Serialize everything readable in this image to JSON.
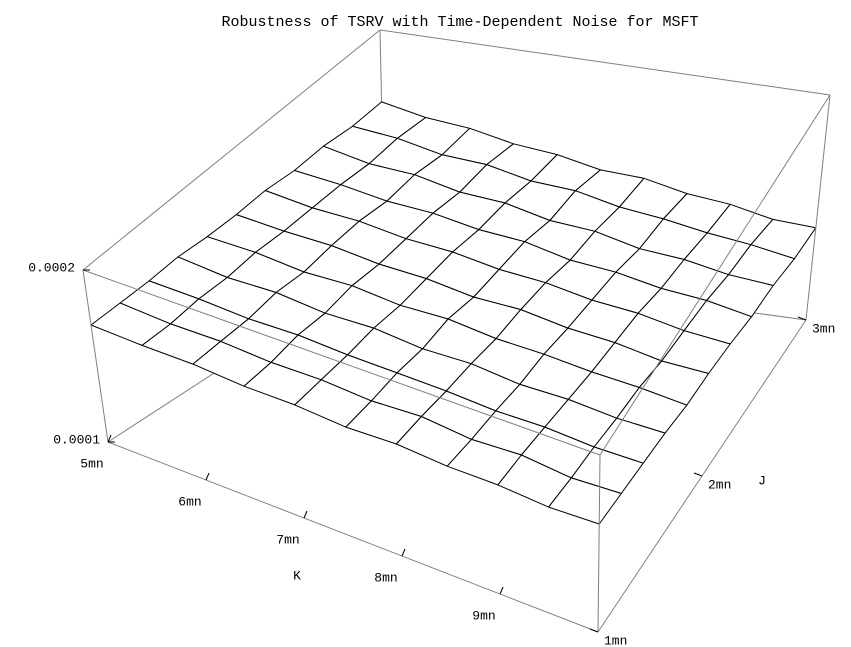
{
  "chart_data": {
    "type": "surface",
    "title": "Robustness of TSRV with Time-Dependent Noise for MSFT",
    "xlabel": "K",
    "ylabel": "J",
    "x": [
      5,
      5.5,
      6,
      6.5,
      7,
      7.5,
      8,
      8.5,
      9,
      9.5,
      10
    ],
    "y": [
      1,
      1.2,
      1.4,
      1.6,
      1.8,
      2,
      2.2,
      2.4,
      2.6,
      2.8,
      3
    ],
    "z": [
      [
        0.000168,
        0.000167,
        0.000167,
        0.000165,
        0.000165,
        0.000163,
        0.000164,
        0.000162,
        0.000162,
        0.00016,
        0.000161
      ],
      [
        0.000168,
        0.000166,
        0.000166,
        0.000164,
        0.000164,
        0.000162,
        0.000163,
        0.00016,
        0.000161,
        0.000158,
        0.000159
      ],
      [
        0.000168,
        0.000167,
        0.000165,
        0.000165,
        0.000163,
        0.000162,
        0.000161,
        0.000159,
        0.000159,
        0.000157,
        0.000157
      ],
      [
        0.000169,
        0.000166,
        0.000166,
        0.000163,
        0.000163,
        0.00016,
        0.00016,
        0.000157,
        0.000157,
        0.000155,
        0.000155
      ],
      [
        0.000168,
        0.000167,
        0.000164,
        0.000164,
        0.000161,
        0.000161,
        0.000158,
        0.000157,
        0.000155,
        0.000154,
        0.000152
      ],
      [
        0.000168,
        0.000166,
        0.000165,
        0.000162,
        0.000161,
        0.000158,
        0.000158,
        0.000155,
        0.000154,
        0.000151,
        0.000151
      ],
      [
        0.000169,
        0.000166,
        0.000165,
        0.000162,
        0.000161,
        0.000158,
        0.000157,
        0.000154,
        0.000153,
        0.00015,
        0.000149
      ],
      [
        0.000168,
        0.000166,
        0.000163,
        0.000162,
        0.000159,
        0.000158,
        0.000154,
        0.000153,
        0.00015,
        0.000149,
        0.000146
      ],
      [
        0.000169,
        0.000165,
        0.000164,
        0.00016,
        0.000159,
        0.000155,
        0.000154,
        0.00015,
        0.000149,
        0.000146,
        0.000145
      ],
      [
        0.000168,
        0.000166,
        0.000162,
        0.000161,
        0.000157,
        0.000156,
        0.000152,
        0.00015,
        0.000147,
        0.000145,
        0.000142
      ],
      [
        0.000169,
        0.000165,
        0.000163,
        0.000159,
        0.000157,
        0.000153,
        0.000152,
        0.000148,
        0.000146,
        0.000142,
        0.000141
      ]
    ],
    "xlim": [
      5,
      10
    ],
    "ylim": [
      1,
      3
    ],
    "zlim": [
      0.0001,
      0.0002
    ],
    "xticks": [
      {
        "value": 5,
        "label": "5mn"
      },
      {
        "value": 6,
        "label": "6mn"
      },
      {
        "value": 7,
        "label": "7mn"
      },
      {
        "value": 8,
        "label": "8mn"
      },
      {
        "value": 9,
        "label": "9mn"
      }
    ],
    "yticks": [
      {
        "value": 1,
        "label": "1mn"
      },
      {
        "value": 2,
        "label": "2mn"
      },
      {
        "value": 3,
        "label": "3mn"
      }
    ],
    "zticks": [
      0.0001,
      0.0002
    ]
  }
}
